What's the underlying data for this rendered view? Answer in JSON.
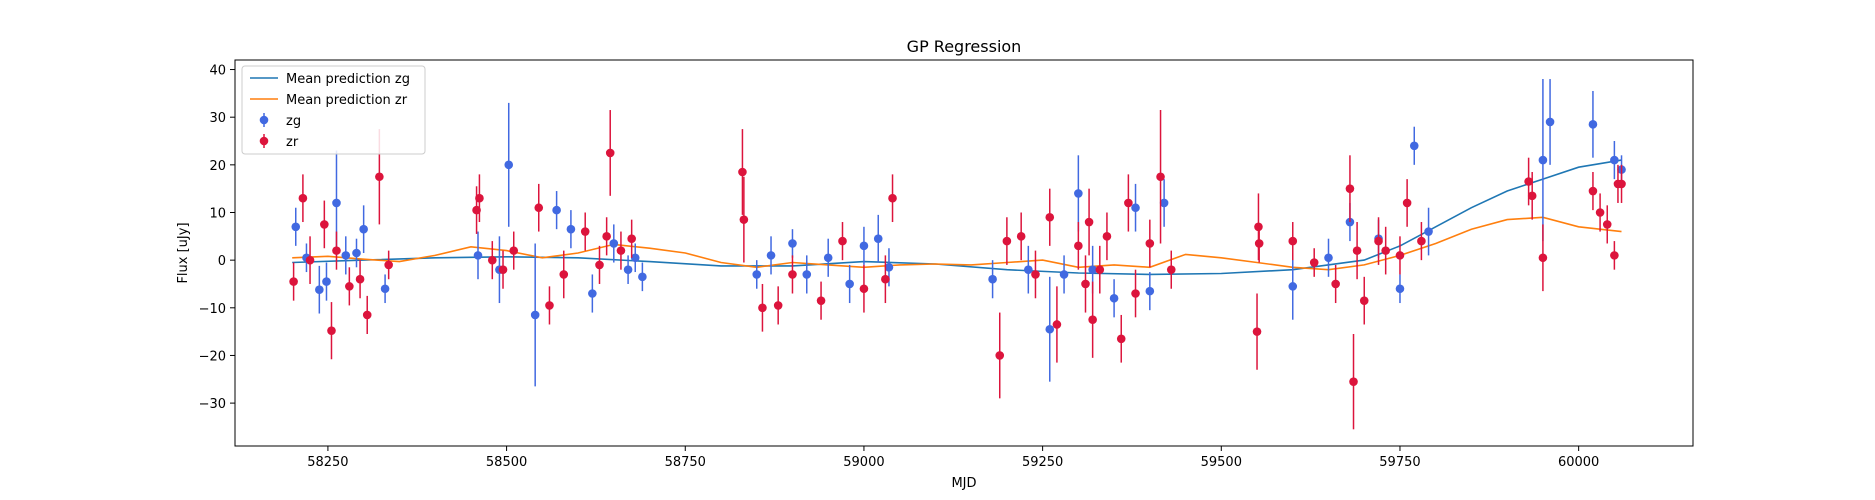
{
  "chart_data": {
    "type": "scatter",
    "title": "GP Regression",
    "xlabel": "MJD",
    "ylabel": "Flux [uJy]",
    "xlim": [
      58120,
      60160
    ],
    "ylim": [
      -39,
      42
    ],
    "xticks": [
      58250,
      58500,
      58750,
      59000,
      59250,
      59500,
      59750,
      60000
    ],
    "yticks": [
      -30,
      -20,
      -10,
      0,
      10,
      20,
      30,
      40
    ],
    "legend_position": "upper-left",
    "colors": {
      "zg": "#4169e1",
      "zr": "#dc143c",
      "mean_zg": "#1f77b4",
      "mean_zr": "#ff7f0e"
    },
    "mean_prediction": [
      {
        "name": "Mean prediction zg",
        "x": [
          58200,
          58300,
          58400,
          58500,
          58600,
          58700,
          58800,
          58900,
          59000,
          59100,
          59200,
          59300,
          59400,
          59500,
          59600,
          59700,
          59750,
          59800,
          59850,
          59900,
          59950,
          60000,
          60060
        ],
        "y": [
          -0.5,
          0.0,
          0.5,
          0.7,
          0.5,
          -0.3,
          -1.2,
          -1.2,
          -0.3,
          -0.8,
          -2.0,
          -2.7,
          -3.0,
          -2.8,
          -2.0,
          0.0,
          3.0,
          7.0,
          11.0,
          14.5,
          17.0,
          19.5,
          21.0
        ]
      },
      {
        "name": "Mean prediction zr",
        "x": [
          58200,
          58250,
          58300,
          58350,
          58400,
          58450,
          58500,
          58550,
          58600,
          58650,
          58700,
          58750,
          58800,
          58850,
          58900,
          58950,
          59000,
          59050,
          59100,
          59150,
          59200,
          59250,
          59300,
          59350,
          59400,
          59450,
          59500,
          59550,
          59600,
          59650,
          59700,
          59750,
          59800,
          59850,
          59900,
          59950,
          60000,
          60060
        ],
        "y": [
          0.5,
          0.8,
          0.2,
          -0.3,
          1.0,
          2.8,
          2.0,
          0.5,
          1.5,
          3.3,
          2.5,
          1.5,
          -0.5,
          -1.5,
          -0.5,
          -1.0,
          -1.5,
          -1.0,
          -0.8,
          -1.0,
          -0.5,
          0.0,
          -1.5,
          -1.0,
          -1.5,
          1.2,
          0.5,
          -0.5,
          -1.5,
          -2.0,
          -1.0,
          1.0,
          3.5,
          6.5,
          8.5,
          9.0,
          7.0,
          6.0
        ]
      }
    ],
    "series": [
      {
        "name": "zg",
        "x": [
          58205,
          58220,
          58238,
          58248,
          58262,
          58275,
          58290,
          58300,
          58330,
          58460,
          58490,
          58503,
          58540,
          58570,
          58590,
          58620,
          58650,
          58670,
          58680,
          58690,
          58850,
          58870,
          58900,
          58920,
          58950,
          58980,
          59000,
          59020,
          59035,
          59180,
          59230,
          59260,
          59280,
          59300,
          59320,
          59350,
          59380,
          59400,
          59420,
          59600,
          59650,
          59680,
          59720,
          59750,
          59770,
          59790,
          59950,
          59960,
          60020,
          60050,
          60060
        ],
        "y": [
          7.0,
          0.5,
          -6.2,
          -4.5,
          12.0,
          1.0,
          1.5,
          6.5,
          -6.0,
          1.0,
          -2.0,
          20.0,
          -11.5,
          10.5,
          6.5,
          -7.0,
          3.5,
          -2.0,
          0.5,
          -3.5,
          -3.0,
          1.0,
          3.5,
          -3.0,
          0.5,
          -5.0,
          3.0,
          4.5,
          -1.5,
          -4.0,
          -2.0,
          -14.5,
          -3.0,
          14.0,
          -2.0,
          -8.0,
          11.0,
          -6.5,
          12.0,
          -5.5,
          0.5,
          8.0,
          4.5,
          -6.0,
          24.0,
          6.0,
          21.0,
          29.0,
          28.5,
          21.0,
          19.0
        ],
        "err": [
          4,
          3,
          5,
          4,
          11,
          4,
          3,
          5,
          3,
          5,
          7,
          13,
          15,
          4,
          4,
          4,
          4,
          3,
          3,
          3,
          3,
          4,
          3,
          4,
          4,
          4,
          4,
          5,
          4,
          4,
          5,
          11,
          4,
          8,
          5,
          4,
          5,
          4,
          5,
          7,
          4,
          4,
          4,
          3,
          4,
          5,
          17,
          9,
          7,
          4,
          3
        ]
      },
      {
        "name": "zr",
        "x": [
          58202,
          58215,
          58225,
          58245,
          58255,
          58262,
          58280,
          58295,
          58305,
          58322,
          58335,
          58458,
          58462,
          58480,
          58495,
          58510,
          58545,
          58560,
          58580,
          58610,
          58630,
          58640,
          58645,
          58660,
          58675,
          58830,
          58832,
          58858,
          58880,
          58900,
          58940,
          58970,
          59000,
          59030,
          59040,
          59190,
          59200,
          59220,
          59240,
          59260,
          59270,
          59300,
          59310,
          59315,
          59320,
          59330,
          59340,
          59360,
          59370,
          59380,
          59400,
          59415,
          59430,
          59550,
          59552,
          59553,
          59600,
          59630,
          59660,
          59680,
          59685,
          59690,
          59700,
          59720,
          59730,
          59750,
          59760,
          59780,
          59930,
          59935,
          59950,
          60020,
          60030,
          60040,
          60050,
          60055,
          60060
        ],
        "y": [
          -4.5,
          13.0,
          0.0,
          7.5,
          -14.8,
          2.0,
          -5.5,
          -4.0,
          -11.5,
          17.5,
          -1.0,
          10.5,
          13.0,
          0.0,
          -2.0,
          2.0,
          11.0,
          -9.5,
          -3.0,
          6.0,
          -1.0,
          5.0,
          22.5,
          2.0,
          4.5,
          18.5,
          8.5,
          -10.0,
          -9.5,
          -3.0,
          -8.5,
          4.0,
          -6.0,
          -4.0,
          13.0,
          -20.0,
          4.0,
          5.0,
          -3.0,
          9.0,
          -13.5,
          3.0,
          -5.0,
          8.0,
          -12.5,
          -2.0,
          5.0,
          -16.5,
          12.0,
          -7.0,
          3.5,
          17.5,
          -2.0,
          -15.0,
          7.0,
          3.5,
          4.0,
          -0.5,
          -5.0,
          15.0,
          -25.5,
          2.0,
          -8.5,
          4.0,
          2.0,
          1.0,
          12.0,
          4.0,
          16.5,
          13.5,
          0.5,
          14.5,
          10.0,
          7.5,
          1.0,
          16.0,
          16.0
        ],
        "err": [
          4,
          5,
          5,
          5,
          6,
          4,
          4,
          4,
          4,
          10,
          3,
          5,
          5,
          4,
          4,
          4,
          5,
          4,
          5,
          4,
          4,
          4,
          9,
          4,
          4,
          9,
          9,
          5,
          4,
          4,
          4,
          4,
          5,
          5,
          5,
          9,
          5,
          5,
          5,
          6,
          8,
          5,
          6,
          7,
          8,
          5,
          5,
          5,
          6,
          5,
          5,
          14,
          4,
          8,
          7,
          4,
          4,
          3,
          4,
          7,
          10,
          6,
          5,
          5,
          5,
          4,
          5,
          4,
          5,
          5,
          7,
          4,
          4,
          4,
          3,
          4,
          4
        ]
      }
    ]
  }
}
